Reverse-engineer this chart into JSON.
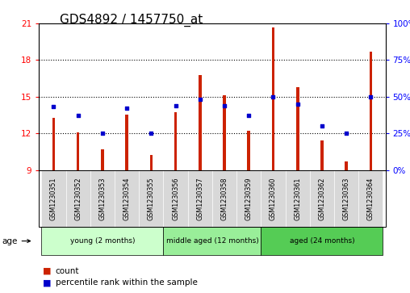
{
  "title": "GDS4892 / 1457750_at",
  "samples": [
    "GSM1230351",
    "GSM1230352",
    "GSM1230353",
    "GSM1230354",
    "GSM1230355",
    "GSM1230356",
    "GSM1230357",
    "GSM1230358",
    "GSM1230359",
    "GSM1230360",
    "GSM1230361",
    "GSM1230362",
    "GSM1230363",
    "GSM1230364"
  ],
  "counts": [
    13.3,
    12.1,
    10.7,
    13.5,
    10.2,
    13.7,
    16.8,
    15.1,
    12.2,
    20.7,
    15.8,
    11.4,
    9.7,
    18.7
  ],
  "percentiles": [
    43,
    37,
    25,
    42,
    25,
    44,
    48,
    44,
    37,
    50,
    45,
    30,
    25,
    50
  ],
  "ylim_left": [
    9,
    21
  ],
  "ylim_right": [
    0,
    100
  ],
  "yticks_left": [
    9,
    12,
    15,
    18,
    21
  ],
  "yticks_right": [
    0,
    25,
    50,
    75,
    100
  ],
  "ytick_labels_right": [
    "0%",
    "25%",
    "50%",
    "75%",
    "100%"
  ],
  "bar_color": "#cc2200",
  "percentile_color": "#0000cc",
  "bg_color": "#ffffff",
  "groups": [
    {
      "label": "young (2 months)",
      "start": 0,
      "end": 5,
      "color": "#ccffcc"
    },
    {
      "label": "middle aged (12 months)",
      "start": 5,
      "end": 9,
      "color": "#99ee99"
    },
    {
      "label": "aged (24 months)",
      "start": 9,
      "end": 14,
      "color": "#55cc55"
    }
  ],
  "age_label": "age",
  "legend_count": "count",
  "legend_percentile": "percentile rank within the sample",
  "title_fontsize": 11,
  "tick_fontsize": 7.5,
  "bar_width": 0.12,
  "base_value": 9
}
